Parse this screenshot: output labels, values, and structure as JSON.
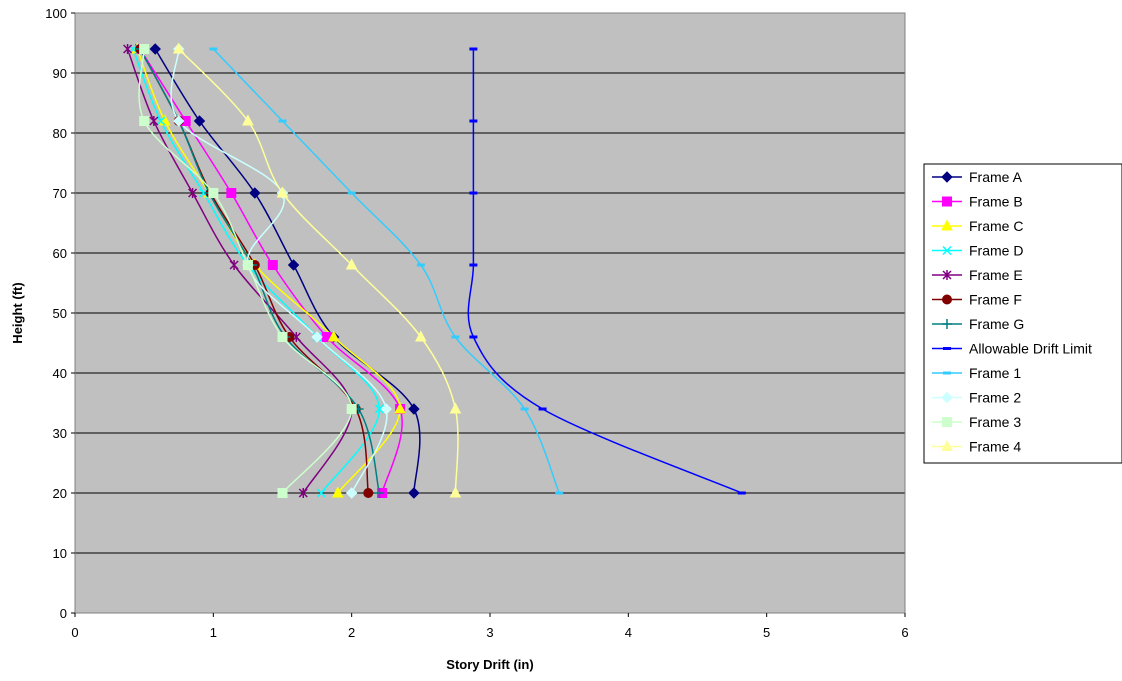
{
  "chart_data": {
    "type": "line",
    "xlabel": "Story Drift (in)",
    "ylabel": "Height (ft)",
    "xlim": [
      0,
      6
    ],
    "ylim": [
      0,
      100
    ],
    "xticks": [
      "0",
      "1",
      "2",
      "3",
      "4",
      "5",
      "6"
    ],
    "yticks": [
      "0",
      "10",
      "20",
      "30",
      "40",
      "50",
      "60",
      "70",
      "80",
      "90",
      "100"
    ],
    "grid": "horizontal",
    "legend_position": "right",
    "plot_background": "#c0c0c0",
    "series": [
      {
        "name": "Frame A",
        "color": "#000080",
        "marker": "diamond",
        "points": [
          [
            2.45,
            20
          ],
          [
            2.45,
            34
          ],
          [
            1.87,
            46
          ],
          [
            1.58,
            58
          ],
          [
            1.3,
            70
          ],
          [
            0.9,
            82
          ],
          [
            0.58,
            94
          ]
        ]
      },
      {
        "name": "Frame B",
        "color": "#ff00ff",
        "marker": "square",
        "points": [
          [
            2.22,
            20
          ],
          [
            2.35,
            34
          ],
          [
            1.82,
            46
          ],
          [
            1.43,
            58
          ],
          [
            1.13,
            70
          ],
          [
            0.8,
            82
          ],
          [
            0.47,
            94
          ]
        ]
      },
      {
        "name": "Frame C",
        "color": "#ffff00",
        "marker": "triangle",
        "points": [
          [
            1.9,
            20
          ],
          [
            2.35,
            34
          ],
          [
            1.87,
            46
          ],
          [
            1.3,
            58
          ],
          [
            0.97,
            70
          ],
          [
            0.65,
            82
          ],
          [
            0.45,
            94
          ]
        ]
      },
      {
        "name": "Frame D",
        "color": "#00ffff",
        "marker": "x",
        "points": [
          [
            1.78,
            20
          ],
          [
            2.2,
            34
          ],
          [
            1.75,
            46
          ],
          [
            1.25,
            58
          ],
          [
            0.93,
            70
          ],
          [
            0.62,
            82
          ],
          [
            0.42,
            94
          ]
        ]
      },
      {
        "name": "Frame E",
        "color": "#800080",
        "marker": "star",
        "points": [
          [
            1.65,
            20
          ],
          [
            2.0,
            34
          ],
          [
            1.6,
            46
          ],
          [
            1.15,
            58
          ],
          [
            0.85,
            70
          ],
          [
            0.57,
            82
          ],
          [
            0.38,
            94
          ]
        ]
      },
      {
        "name": "Frame F",
        "color": "#800000",
        "marker": "circle",
        "points": [
          [
            2.12,
            20
          ],
          [
            2.03,
            34
          ],
          [
            1.55,
            46
          ],
          [
            1.3,
            58
          ],
          [
            0.98,
            70
          ],
          [
            0.75,
            82
          ],
          [
            0.47,
            94
          ]
        ]
      },
      {
        "name": "Frame G",
        "color": "#008080",
        "marker": "plus",
        "points": [
          [
            2.2,
            20
          ],
          [
            2.05,
            34
          ],
          [
            1.52,
            46
          ],
          [
            1.28,
            58
          ],
          [
            0.97,
            70
          ],
          [
            0.75,
            82
          ],
          [
            0.47,
            94
          ]
        ]
      },
      {
        "name": "Allowable Drift Limit",
        "color": "#0000ff",
        "marker": "dash",
        "points": [
          [
            4.82,
            20
          ],
          [
            3.38,
            34
          ],
          [
            2.88,
            46
          ],
          [
            2.88,
            58
          ],
          [
            2.88,
            70
          ],
          [
            2.88,
            82
          ],
          [
            2.88,
            94
          ]
        ]
      },
      {
        "name": "Frame 1",
        "color": "#33ccff",
        "marker": "dash",
        "points": [
          [
            3.5,
            20
          ],
          [
            3.25,
            34
          ],
          [
            2.75,
            46
          ],
          [
            2.5,
            58
          ],
          [
            2.0,
            70
          ],
          [
            1.5,
            82
          ],
          [
            1.0,
            94
          ]
        ]
      },
      {
        "name": "Frame 2",
        "color": "#ccffff",
        "marker": "diamond",
        "points": [
          [
            2.0,
            20
          ],
          [
            2.25,
            34
          ],
          [
            1.75,
            46
          ],
          [
            1.25,
            58
          ],
          [
            1.5,
            70
          ],
          [
            0.75,
            82
          ],
          [
            0.75,
            94
          ]
        ]
      },
      {
        "name": "Frame 3",
        "color": "#ccffcc",
        "marker": "square",
        "points": [
          [
            1.5,
            20
          ],
          [
            2.0,
            34
          ],
          [
            1.5,
            46
          ],
          [
            1.25,
            58
          ],
          [
            1.0,
            70
          ],
          [
            0.5,
            82
          ],
          [
            0.5,
            94
          ]
        ]
      },
      {
        "name": "Frame 4",
        "color": "#ffff99",
        "marker": "triangle",
        "points": [
          [
            2.75,
            20
          ],
          [
            2.75,
            34
          ],
          [
            2.5,
            46
          ],
          [
            2.0,
            58
          ],
          [
            1.5,
            70
          ],
          [
            1.25,
            82
          ],
          [
            0.75,
            94
          ]
        ]
      }
    ]
  }
}
